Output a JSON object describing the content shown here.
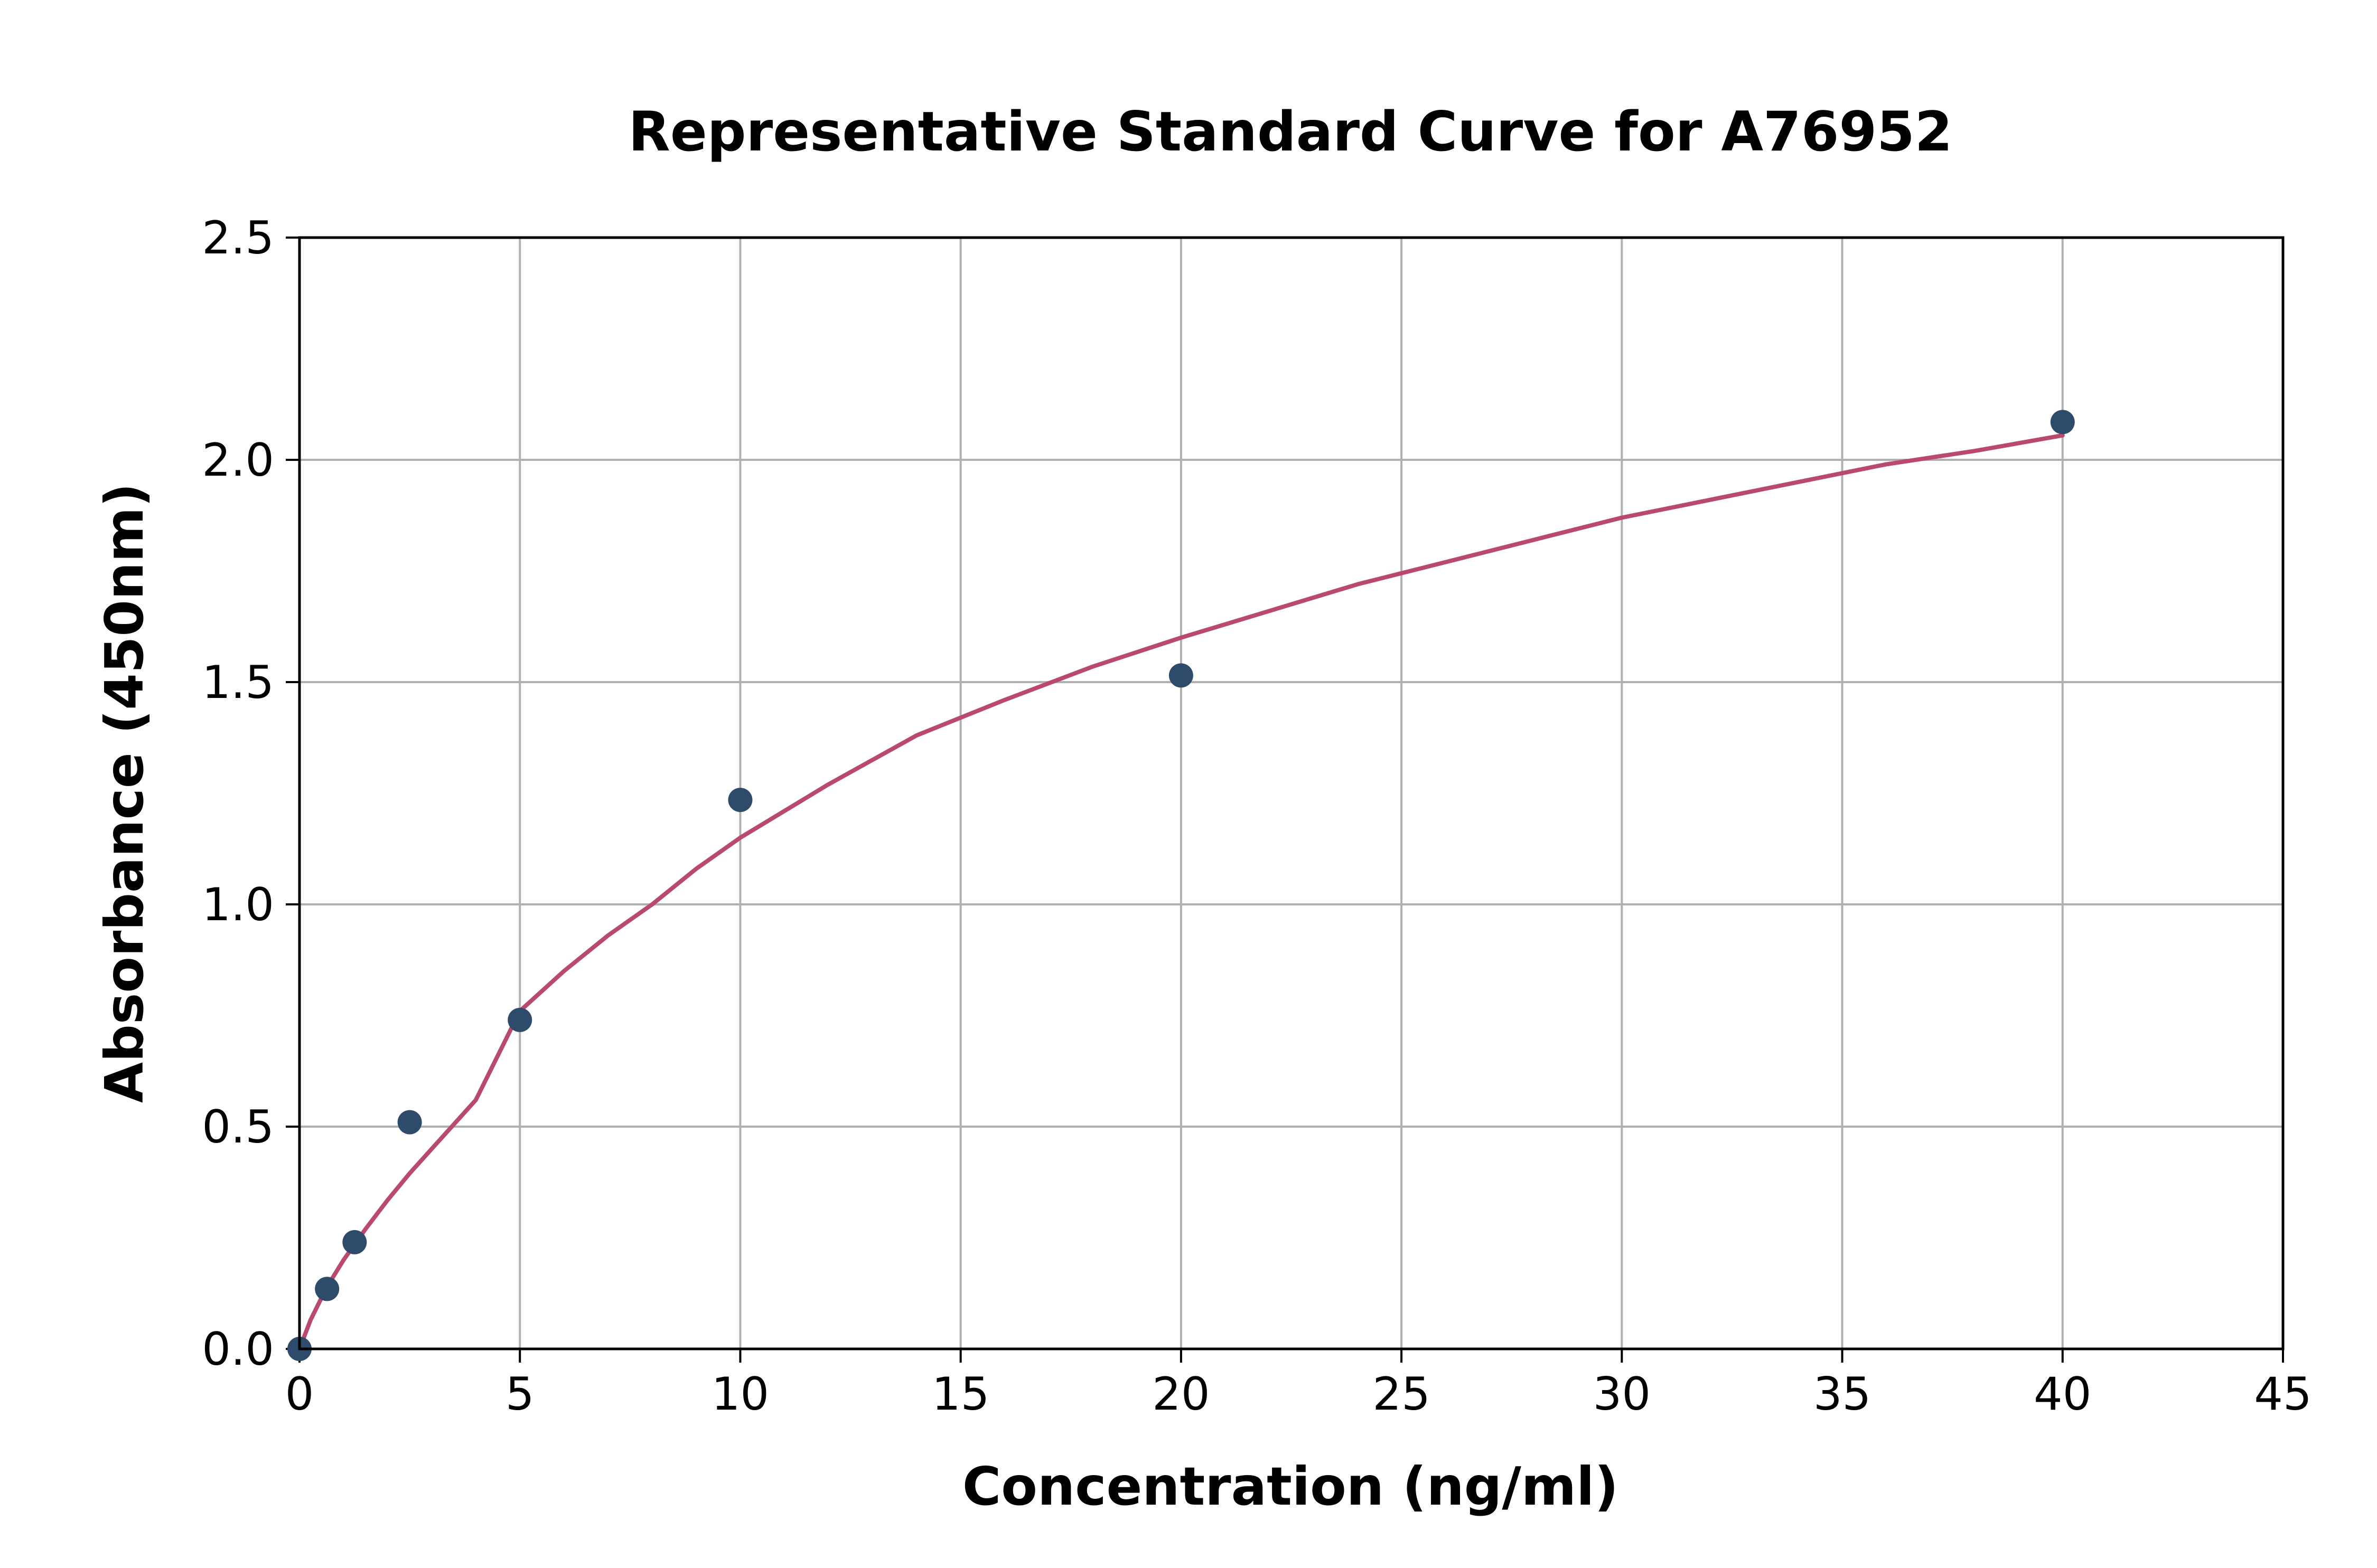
{
  "chart_data": {
    "type": "scatter",
    "title": "Representative Standard Curve for A76952",
    "xlabel": "Concentration (ng/ml)",
    "ylabel": "Absorbance (450nm)",
    "xlim": [
      0,
      45
    ],
    "ylim": [
      0,
      2.5
    ],
    "xticks": [
      0,
      5,
      10,
      15,
      20,
      25,
      30,
      35,
      40,
      45
    ],
    "yticks": [
      0.0,
      0.5,
      1.0,
      1.5,
      2.0,
      2.5
    ],
    "xtick_labels": [
      "0",
      "5",
      "10",
      "15",
      "20",
      "25",
      "30",
      "35",
      "40",
      "45"
    ],
    "ytick_labels": [
      "0.0",
      "0.5",
      "1.0",
      "1.5",
      "2.0",
      "2.5"
    ],
    "grid": true,
    "legend": "none",
    "series": [
      {
        "type": "scatter",
        "color": "#2e4b6b",
        "x": [
          0,
          0.625,
          1.25,
          2.5,
          5,
          10,
          20,
          40
        ],
        "y": [
          0.0,
          0.135,
          0.24,
          0.51,
          0.74,
          1.235,
          1.515,
          2.085
        ]
      },
      {
        "type": "line",
        "color": "#b94a6e",
        "x": [
          0,
          0.25,
          0.5,
          0.75,
          1,
          1.5,
          2,
          2.5,
          3,
          4,
          5,
          6,
          7,
          8,
          9,
          10,
          12,
          14,
          16,
          18,
          20,
          22,
          24,
          26,
          28,
          30,
          32,
          34,
          36,
          38,
          40
        ],
        "y": [
          0.0,
          0.065,
          0.115,
          0.16,
          0.2,
          0.27,
          0.335,
          0.395,
          0.45,
          0.56,
          0.76,
          0.85,
          0.93,
          1.0,
          1.08,
          1.15,
          1.27,
          1.38,
          1.46,
          1.535,
          1.6,
          1.66,
          1.72,
          1.77,
          1.82,
          1.87,
          1.91,
          1.95,
          1.99,
          2.02,
          2.055
        ]
      }
    ]
  }
}
